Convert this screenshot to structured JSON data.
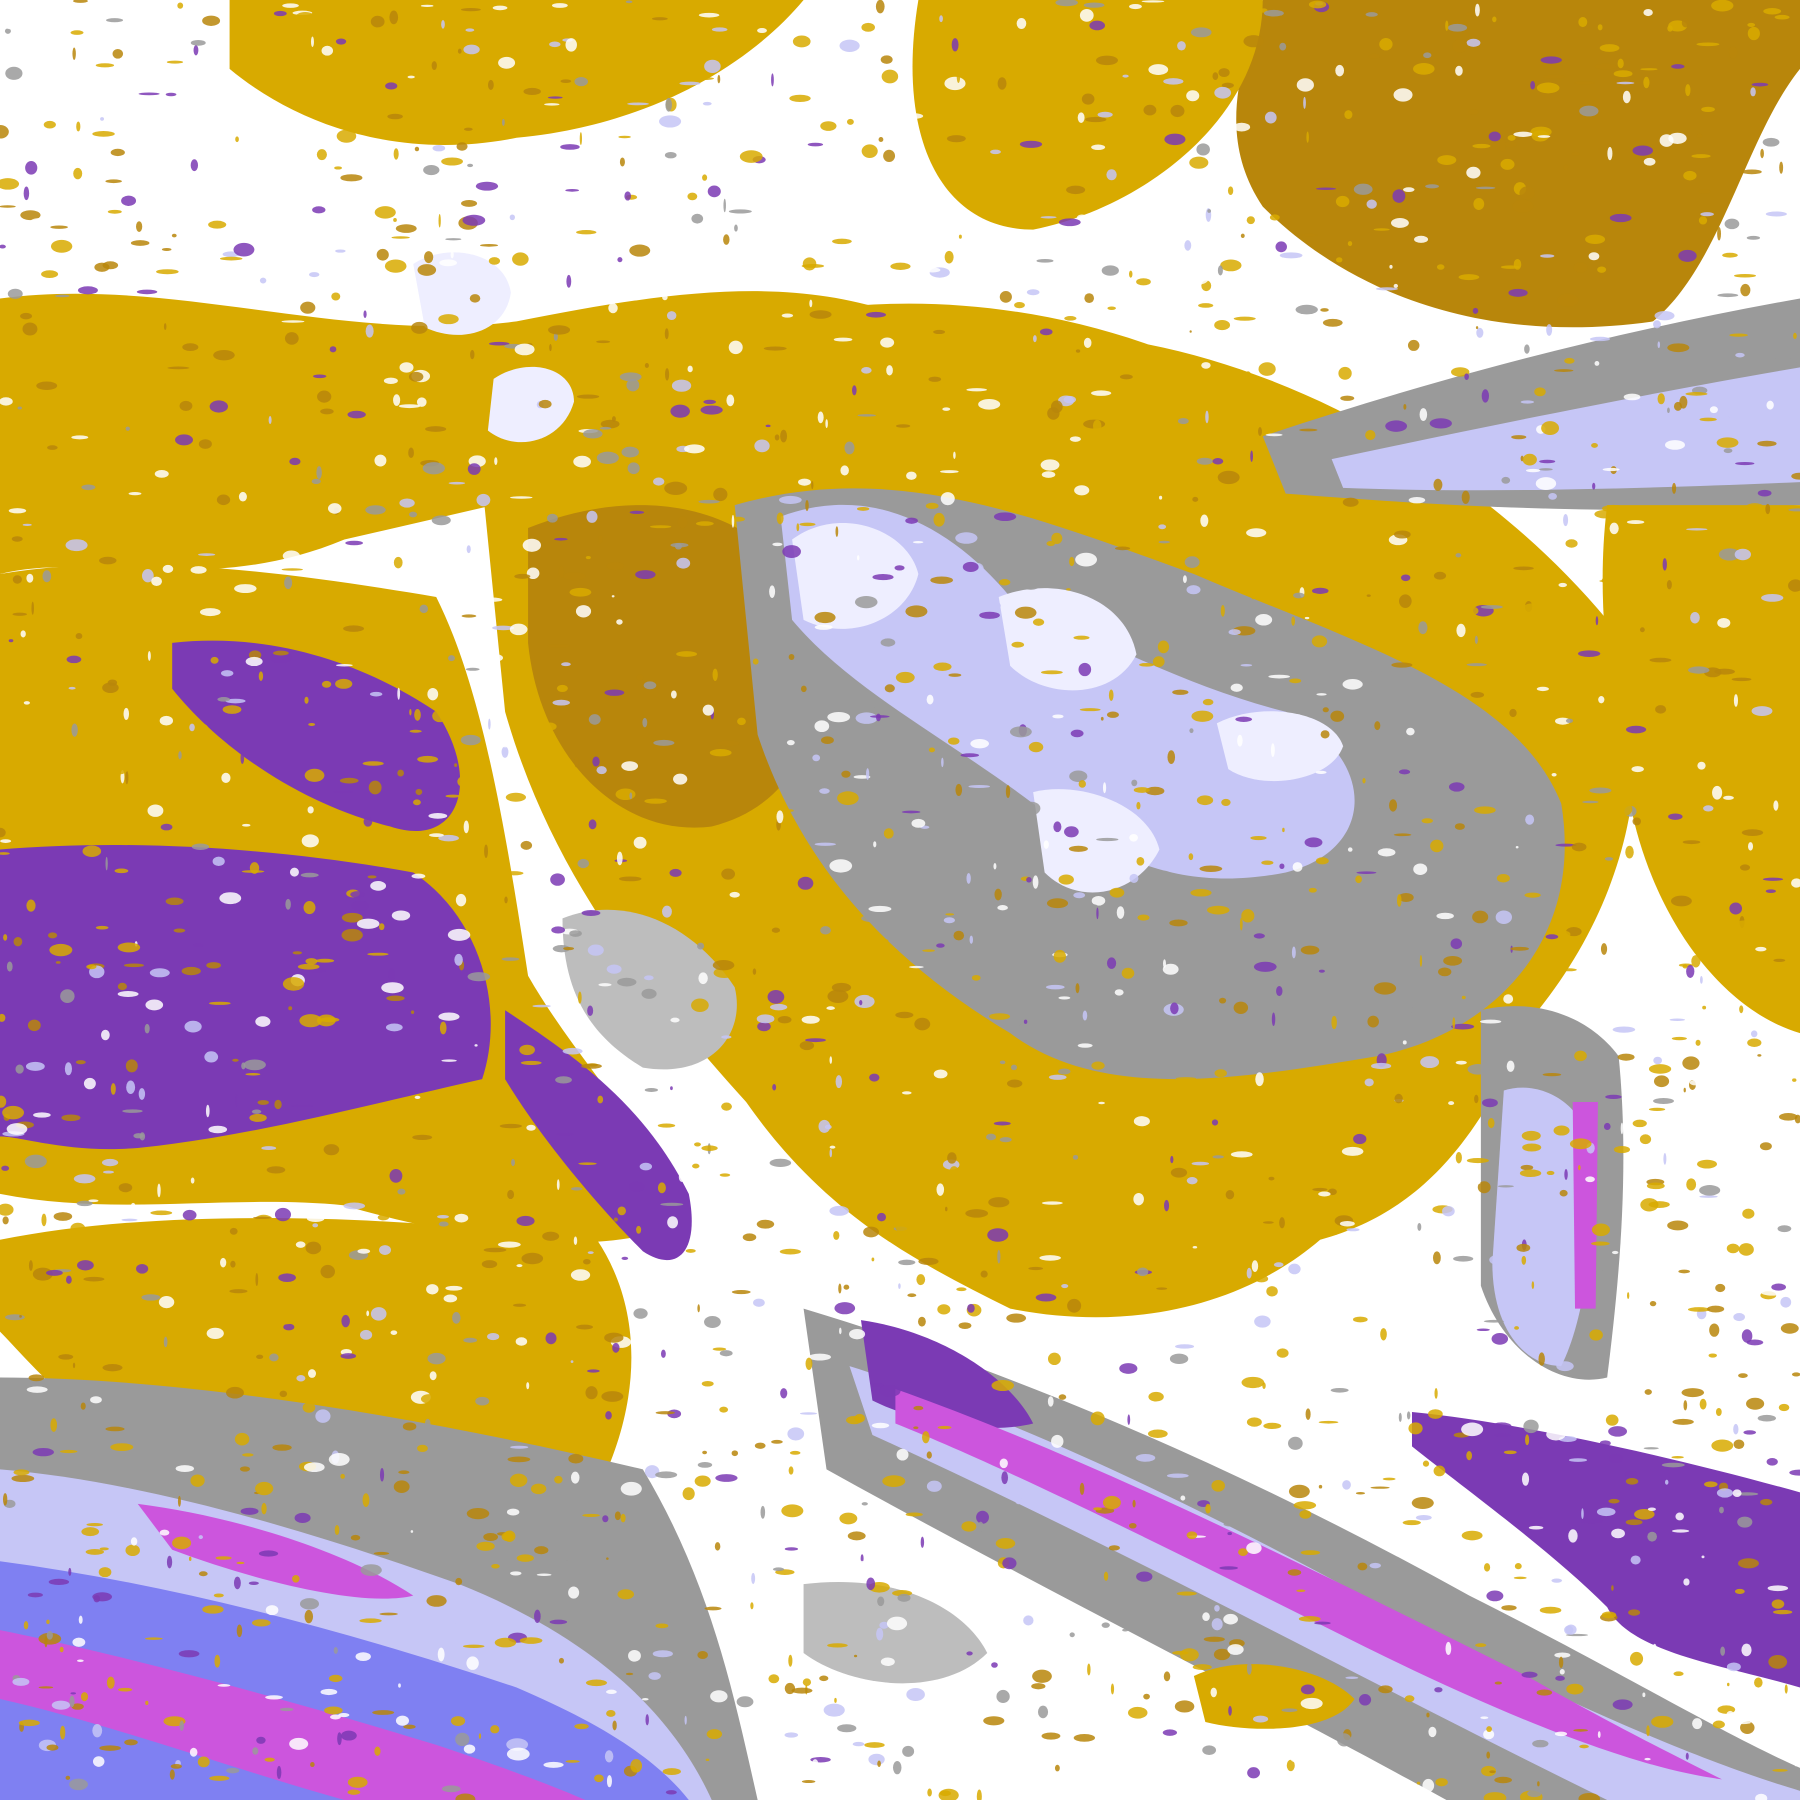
{
  "map": {
    "palette": {
      "background": "#ffffff",
      "gold": "#d8aa00",
      "dark_gold": "#b8860b",
      "purple": "#7b3ab4",
      "magenta": "#cc55dd",
      "blue": "#7f80f2",
      "lavender": "#c6c6f6",
      "pale_lavender": "#eeeeff",
      "gray": "#9a9a9a",
      "light_gray": "#bdbdbd"
    }
  }
}
